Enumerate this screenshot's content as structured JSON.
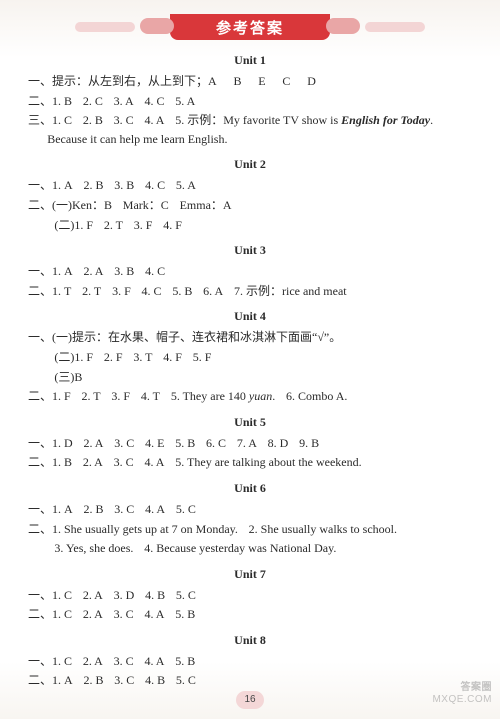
{
  "banner": {
    "title": "参考答案"
  },
  "pageNumber": "16",
  "watermark": {
    "line1": "答案圈",
    "line2": "MXQE.COM"
  },
  "units": [
    {
      "title": "Unit 1",
      "lines": [
        {
          "type": "line",
          "parts": [
            {
              "t": "一、提示：从左到右，从上到下；A"
            },
            {
              "g": "w"
            },
            {
              "t": "B"
            },
            {
              "g": "w"
            },
            {
              "t": "E"
            },
            {
              "g": "w"
            },
            {
              "t": "C"
            },
            {
              "g": "w"
            },
            {
              "t": "D"
            }
          ]
        },
        {
          "type": "line",
          "parts": [
            {
              "t": "二、1. B"
            },
            {
              "g": "s"
            },
            {
              "t": "2. C"
            },
            {
              "g": "s"
            },
            {
              "t": "3. A"
            },
            {
              "g": "s"
            },
            {
              "t": "4. C"
            },
            {
              "g": "s"
            },
            {
              "t": "5. A"
            }
          ]
        },
        {
          "type": "line",
          "parts": [
            {
              "t": "三、1. C"
            },
            {
              "g": "s"
            },
            {
              "t": "2. B"
            },
            {
              "g": "s"
            },
            {
              "t": "3. C"
            },
            {
              "g": "s"
            },
            {
              "t": "4. A"
            },
            {
              "g": "s"
            },
            {
              "t": "5. 示例：My favorite TV show is "
            },
            {
              "t": "English for Today",
              "cls": "bi"
            },
            {
              "t": ". Because it can help me learn English."
            }
          ]
        }
      ]
    },
    {
      "title": "Unit 2",
      "lines": [
        {
          "type": "line",
          "parts": [
            {
              "t": "一、1. A"
            },
            {
              "g": "s"
            },
            {
              "t": "2. B"
            },
            {
              "g": "s"
            },
            {
              "t": "3. B"
            },
            {
              "g": "s"
            },
            {
              "t": "4. C"
            },
            {
              "g": "s"
            },
            {
              "t": "5. A"
            }
          ]
        },
        {
          "type": "line",
          "parts": [
            {
              "t": "二、(一)Ken：B"
            },
            {
              "g": "s"
            },
            {
              "t": "Mark：C"
            },
            {
              "g": "s"
            },
            {
              "t": "Emma：A"
            }
          ]
        },
        {
          "type": "sub",
          "parts": [
            {
              "t": "(二)1. F"
            },
            {
              "g": "s"
            },
            {
              "t": "2. T"
            },
            {
              "g": "s"
            },
            {
              "t": "3. F"
            },
            {
              "g": "s"
            },
            {
              "t": "4. F"
            }
          ]
        }
      ]
    },
    {
      "title": "Unit 3",
      "lines": [
        {
          "type": "line",
          "parts": [
            {
              "t": "一、1. A"
            },
            {
              "g": "s"
            },
            {
              "t": "2. A"
            },
            {
              "g": "s"
            },
            {
              "t": "3. B"
            },
            {
              "g": "s"
            },
            {
              "t": "4. C"
            }
          ]
        },
        {
          "type": "line",
          "parts": [
            {
              "t": "二、1. T"
            },
            {
              "g": "s"
            },
            {
              "t": "2. T"
            },
            {
              "g": "s"
            },
            {
              "t": "3. F"
            },
            {
              "g": "s"
            },
            {
              "t": "4. C"
            },
            {
              "g": "s"
            },
            {
              "t": "5. B"
            },
            {
              "g": "s"
            },
            {
              "t": "6. A"
            },
            {
              "g": "s"
            },
            {
              "t": "7. 示例：rice and meat"
            }
          ]
        }
      ]
    },
    {
      "title": "Unit 4",
      "lines": [
        {
          "type": "line",
          "parts": [
            {
              "t": "一、(一)提示：在水果、帽子、连衣裙和冰淇淋下面画“√”。"
            }
          ]
        },
        {
          "type": "sub",
          "parts": [
            {
              "t": "(二)1. F"
            },
            {
              "g": "s"
            },
            {
              "t": "2. F"
            },
            {
              "g": "s"
            },
            {
              "t": "3. T"
            },
            {
              "g": "s"
            },
            {
              "t": "4. F"
            },
            {
              "g": "s"
            },
            {
              "t": "5. F"
            }
          ]
        },
        {
          "type": "sub",
          "parts": [
            {
              "t": "(三)B"
            }
          ]
        },
        {
          "type": "line",
          "parts": [
            {
              "t": "二、1. F"
            },
            {
              "g": "s"
            },
            {
              "t": "2. T"
            },
            {
              "g": "s"
            },
            {
              "t": "3. F"
            },
            {
              "g": "s"
            },
            {
              "t": "4. T"
            },
            {
              "g": "s"
            },
            {
              "t": "5. They are 140 "
            },
            {
              "t": "yuan",
              "cls": "it"
            },
            {
              "t": "."
            },
            {
              "g": "s"
            },
            {
              "t": "6. Combo A."
            }
          ]
        }
      ]
    },
    {
      "title": "Unit 5",
      "lines": [
        {
          "type": "line",
          "parts": [
            {
              "t": "一、1. D"
            },
            {
              "g": "s"
            },
            {
              "t": "2. A"
            },
            {
              "g": "s"
            },
            {
              "t": "3. C"
            },
            {
              "g": "s"
            },
            {
              "t": "4. E"
            },
            {
              "g": "s"
            },
            {
              "t": "5. B"
            },
            {
              "g": "s"
            },
            {
              "t": "6. C"
            },
            {
              "g": "s"
            },
            {
              "t": "7. A"
            },
            {
              "g": "s"
            },
            {
              "t": "8. D"
            },
            {
              "g": "s"
            },
            {
              "t": "9. B"
            }
          ]
        },
        {
          "type": "line",
          "parts": [
            {
              "t": "二、1. B"
            },
            {
              "g": "s"
            },
            {
              "t": "2. A"
            },
            {
              "g": "s"
            },
            {
              "t": "3. C"
            },
            {
              "g": "s"
            },
            {
              "t": "4. A"
            },
            {
              "g": "s"
            },
            {
              "t": "5. They are talking about the weekend."
            }
          ]
        }
      ]
    },
    {
      "title": "Unit 6",
      "lines": [
        {
          "type": "line",
          "parts": [
            {
              "t": "一、1. A"
            },
            {
              "g": "s"
            },
            {
              "t": "2. B"
            },
            {
              "g": "s"
            },
            {
              "t": "3. C"
            },
            {
              "g": "s"
            },
            {
              "t": "4. A"
            },
            {
              "g": "s"
            },
            {
              "t": "5. C"
            }
          ]
        },
        {
          "type": "line",
          "parts": [
            {
              "t": "二、1. She usually gets up at 7 on Monday."
            },
            {
              "g": "s"
            },
            {
              "t": "2. She usually walks to school."
            }
          ]
        },
        {
          "type": "sub",
          "parts": [
            {
              "t": "3. Yes, she does."
            },
            {
              "g": "s"
            },
            {
              "t": "4. Because yesterday was National Day."
            }
          ]
        }
      ]
    },
    {
      "title": "Unit 7",
      "lines": [
        {
          "type": "line",
          "parts": [
            {
              "t": "一、1. C"
            },
            {
              "g": "s"
            },
            {
              "t": "2. A"
            },
            {
              "g": "s"
            },
            {
              "t": "3. D"
            },
            {
              "g": "s"
            },
            {
              "t": "4. B"
            },
            {
              "g": "s"
            },
            {
              "t": "5. C"
            }
          ]
        },
        {
          "type": "line",
          "parts": [
            {
              "t": "二、1. C"
            },
            {
              "g": "s"
            },
            {
              "t": "2. A"
            },
            {
              "g": "s"
            },
            {
              "t": "3. C"
            },
            {
              "g": "s"
            },
            {
              "t": "4. A"
            },
            {
              "g": "s"
            },
            {
              "t": "5. B"
            }
          ]
        }
      ]
    },
    {
      "title": "Unit 8",
      "lines": [
        {
          "type": "line",
          "parts": [
            {
              "t": "一、1. C"
            },
            {
              "g": "s"
            },
            {
              "t": "2. A"
            },
            {
              "g": "s"
            },
            {
              "t": "3. C"
            },
            {
              "g": "s"
            },
            {
              "t": "4. A"
            },
            {
              "g": "s"
            },
            {
              "t": "5. B"
            }
          ]
        },
        {
          "type": "line",
          "parts": [
            {
              "t": "二、1. A"
            },
            {
              "g": "s"
            },
            {
              "t": "2. B"
            },
            {
              "g": "s"
            },
            {
              "t": "3. C"
            },
            {
              "g": "s"
            },
            {
              "t": "4. B"
            },
            {
              "g": "s"
            },
            {
              "t": "5. C"
            }
          ]
        }
      ]
    }
  ]
}
